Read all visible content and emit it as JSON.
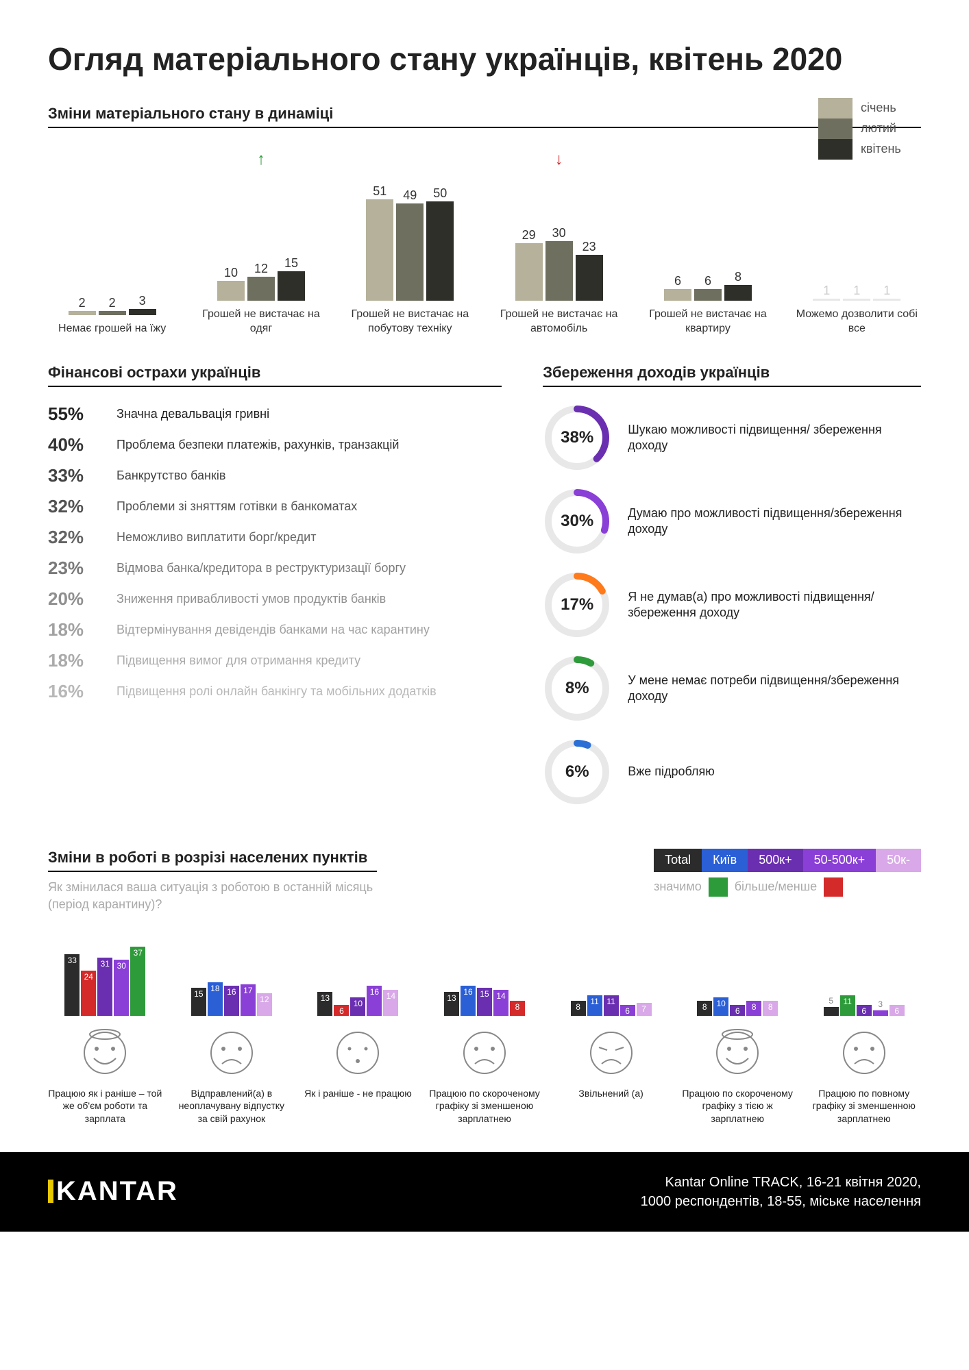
{
  "title": "Огляд матеріального стану українців, квітень 2020",
  "section1": {
    "heading": "Зміни матеріального стану в динаміці",
    "legend": [
      {
        "label": "січень",
        "color": "#b5b19a"
      },
      {
        "label": "лютий",
        "color": "#6f6f60"
      },
      {
        "label": "квітень",
        "color": "#2f2f2a"
      }
    ],
    "max": 55,
    "groups": [
      {
        "label": "Немає грошей на їжу",
        "values": [
          2,
          2,
          3
        ],
        "arrow": null
      },
      {
        "label": "Грошей не вистачає на одяг",
        "values": [
          10,
          12,
          15
        ],
        "arrow": "up",
        "arrow_color": "#2e9b3a"
      },
      {
        "label": "Грошей не вистачає на побутову техніку",
        "values": [
          51,
          49,
          50
        ],
        "arrow": null
      },
      {
        "label": "Грошей не вистачає на автомобіль",
        "values": [
          29,
          30,
          23
        ],
        "arrow": "down",
        "arrow_color": "#d42a2a"
      },
      {
        "label": "Грошей не вистачає на квартиру",
        "values": [
          6,
          6,
          8
        ],
        "arrow": null
      },
      {
        "label": "Можемо дозволити собі все",
        "values": [
          1,
          1,
          1
        ],
        "arrow": null,
        "faded": true
      }
    ]
  },
  "section2": {
    "fears": {
      "heading": "Фінансові острахи українців",
      "items": [
        {
          "pct": "55%",
          "text": "Значна девальвація гривні",
          "opacity": 1
        },
        {
          "pct": "40%",
          "text": "Проблема безпеки платежів, рахунків, транзакцій",
          "opacity": 0.92
        },
        {
          "pct": "33%",
          "text": "Банкрутство банків",
          "opacity": 0.85
        },
        {
          "pct": "32%",
          "text": "Проблеми зі зняттям готівки в банкоматах",
          "opacity": 0.78
        },
        {
          "pct": "32%",
          "text": "Неможливо виплатити борг/кредит",
          "opacity": 0.7
        },
        {
          "pct": "23%",
          "text": "Відмова банка/кредитора в реструктуризації боргу",
          "opacity": 0.6
        },
        {
          "pct": "20%",
          "text": "Зниження привабливості умов продуктів банків",
          "opacity": 0.5
        },
        {
          "pct": "18%",
          "text": "Відтермінування девідендів банками на час карантину",
          "opacity": 0.42
        },
        {
          "pct": "18%",
          "text": "Підвищення вимог для отримання кредиту",
          "opacity": 0.38
        },
        {
          "pct": "16%",
          "text": "Підвищення ролі онлайн банкінгу та мобільних додатків",
          "opacity": 0.32
        }
      ]
    },
    "save": {
      "heading": "Збереження доходів українців",
      "track_color": "#e8e8e8",
      "items": [
        {
          "pct": 38,
          "label": "38%",
          "text": "Шукаю можливості підвищення/ збереження доходу",
          "color": "#6a2fb0"
        },
        {
          "pct": 30,
          "label": "30%",
          "text": "Думаю про можливості підвищення/збереження доходу",
          "color": "#8a3fd6"
        },
        {
          "pct": 17,
          "label": "17%",
          "text": "Я не думав(а) про можливості підвищення/збереження доходу",
          "color": "#ff7a1a"
        },
        {
          "pct": 8,
          "label": "8%",
          "text": "У мене немає потреби підвищення/збереження доходу",
          "color": "#2e9b3a"
        },
        {
          "pct": 6,
          "label": "6%",
          "text": "Вже підробляю",
          "color": "#2a6fd6"
        }
      ]
    }
  },
  "section3": {
    "heading": "Зміни в роботі в розрізі населених пунктів",
    "subq": "Як змінилася ваша ситуація з роботою в останній місяць (період карантину)?",
    "legend": [
      {
        "label": "Total",
        "color": "#2b2b2b"
      },
      {
        "label": "Київ",
        "color": "#2a5fd6"
      },
      {
        "label": "500к+",
        "color": "#6a2fb0"
      },
      {
        "label": "50-500к+",
        "color": "#8a3fd6"
      },
      {
        "label": "50к-",
        "color": "#d9a8e8"
      }
    ],
    "sig_label": "значимо",
    "sig_more": "більше/менше",
    "sig_more_color": "#2e9b3a",
    "sig_less_color": "#d42a2a",
    "max": 40,
    "groups": [
      {
        "face": "happy-wide",
        "label": "Працюю як і раніше – той же об'єм роботи та зарплата",
        "values": [
          33,
          24,
          31,
          30,
          37
        ],
        "flags": [
          null,
          "less",
          null,
          null,
          "more"
        ]
      },
      {
        "face": "sad",
        "label": "Відправлений(а) в неоплачувану відпустку за свій рахунок",
        "values": [
          15,
          18,
          16,
          17,
          12
        ],
        "flags": [
          null,
          null,
          null,
          null,
          null
        ]
      },
      {
        "face": "neutral",
        "label": "Як і раніше - не працюю",
        "values": [
          13,
          6,
          10,
          16,
          14
        ],
        "flags": [
          null,
          "less",
          null,
          null,
          null
        ]
      },
      {
        "face": "sad",
        "label": "Працюю по скороченому графіку зі зменшеною зарплатнею",
        "values": [
          13,
          16,
          15,
          14,
          8
        ],
        "flags": [
          null,
          null,
          null,
          null,
          "less"
        ]
      },
      {
        "face": "angry",
        "label": "Звільнений (а)",
        "values": [
          8,
          11,
          11,
          6,
          7
        ],
        "flags": [
          null,
          null,
          null,
          null,
          null
        ]
      },
      {
        "face": "happy-wide",
        "label": "Працюю по скороченому графіку з тією ж зарплатнею",
        "values": [
          8,
          10,
          6,
          8,
          8
        ],
        "flags": [
          null,
          null,
          null,
          null,
          null
        ]
      },
      {
        "face": "sad",
        "label": "Працюю по повному графіку зі зменшенною зарплатнею",
        "values": [
          5,
          11,
          6,
          3,
          6
        ],
        "flags": [
          null,
          "more",
          null,
          null,
          null
        ]
      }
    ]
  },
  "footer": {
    "logo": "KANTAR",
    "source1": "Kantar Online TRACK, 16-21 квітня 2020,",
    "source2": "1000 респондентів, 18-55, міське населення"
  }
}
